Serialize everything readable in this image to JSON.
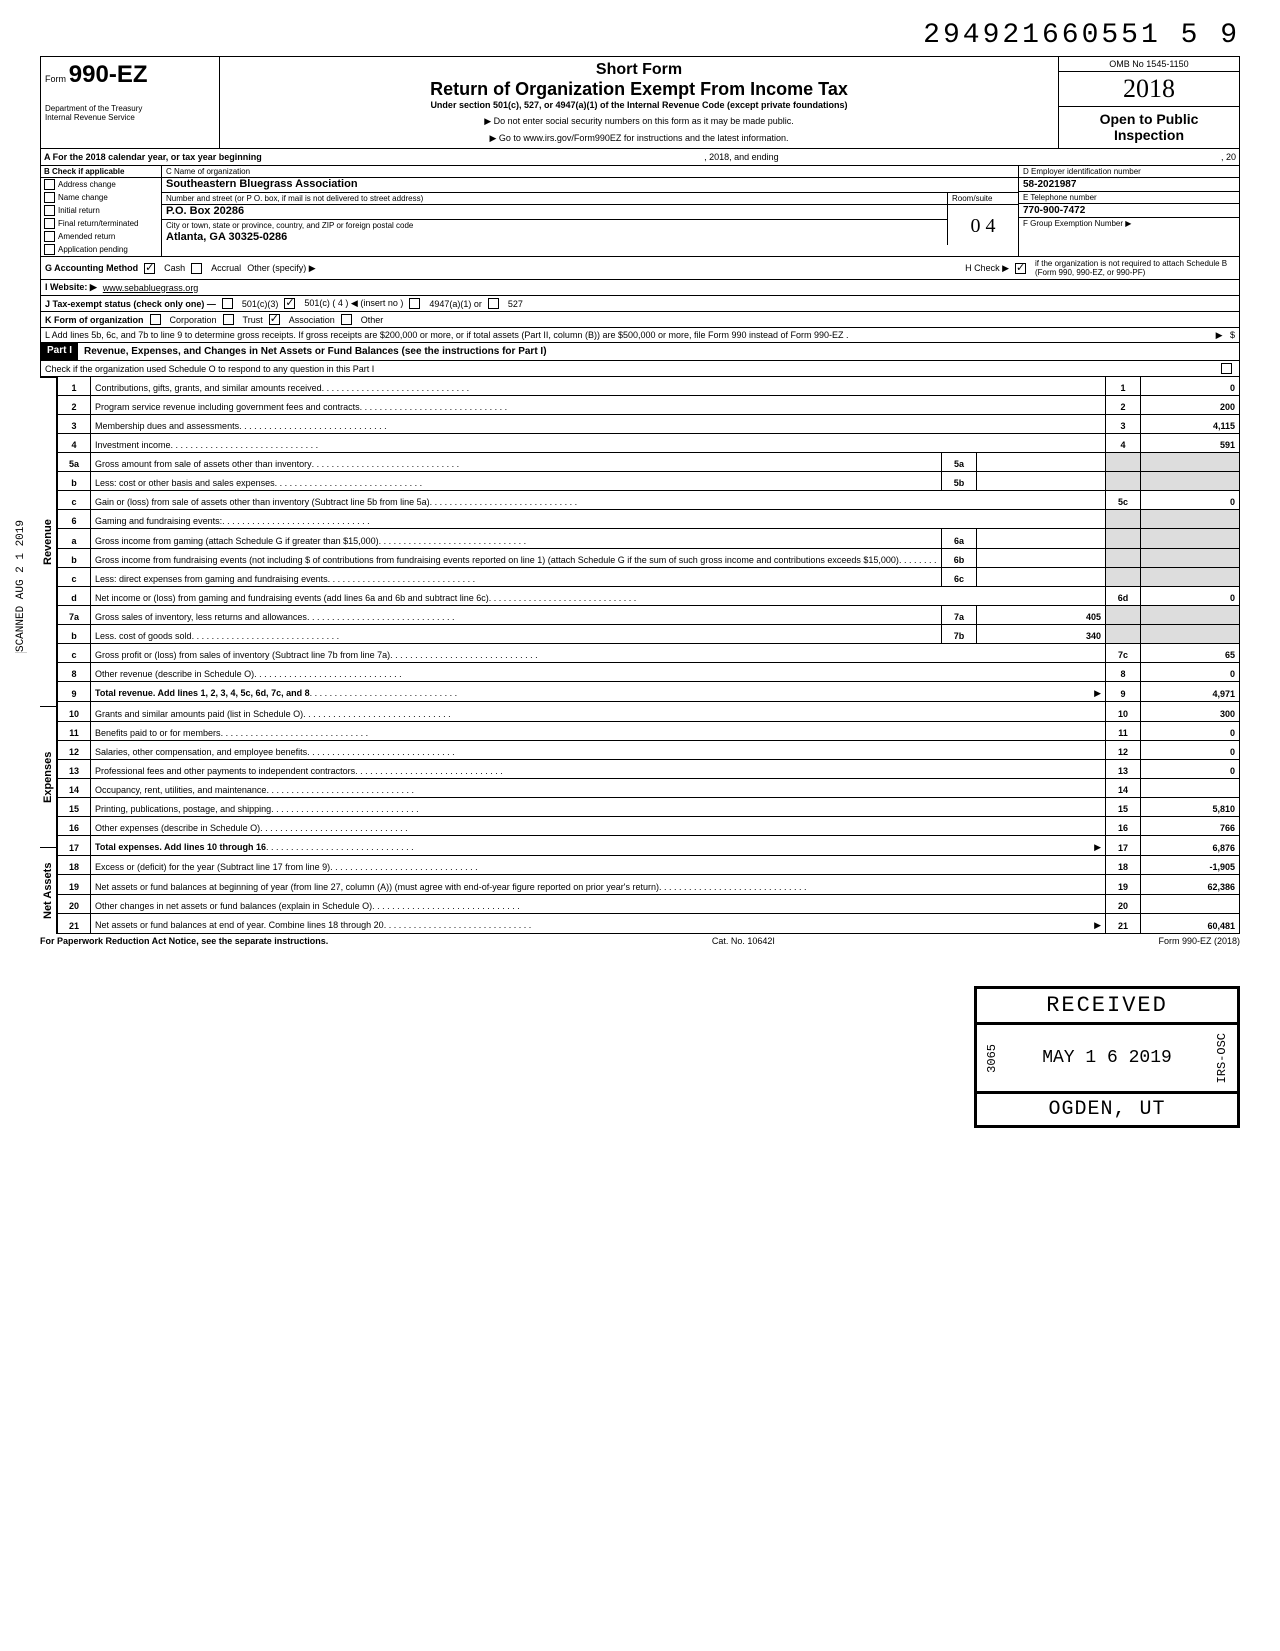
{
  "top_number": "294921660551 5  9",
  "header": {
    "form_prefix": "Form",
    "form_number": "990-EZ",
    "dept": "Department of the Treasury\nInternal Revenue Service",
    "short_form": "Short Form",
    "title": "Return of Organization Exempt From Income Tax",
    "subtitle": "Under section 501(c), 527, or 4947(a)(1) of the Internal Revenue Code (except private foundations)",
    "warn": "▶ Do not enter social security numbers on this form as it may be made public.",
    "goto": "▶ Go to www.irs.gov/Form990EZ for instructions and the latest information.",
    "omb": "OMB No 1545-1150",
    "year": "2018",
    "open": "Open to Public Inspection"
  },
  "row_a": {
    "left": "A  For the 2018 calendar year, or tax year beginning",
    "mid": ", 2018, and ending",
    "right": ", 20"
  },
  "col_b": {
    "title": "B  Check if applicable",
    "items": [
      "Address change",
      "Name change",
      "Initial return",
      "Final return/terminated",
      "Amended return",
      "Application pending"
    ]
  },
  "col_c": {
    "name_label": "C  Name of organization",
    "name": "Southeastern Bluegrass Association",
    "addr_label": "Number and street (or P O. box, if mail is not delivered to street address)",
    "room_label": "Room/suite",
    "addr": "P.O. Box 20286",
    "city_label": "City or town, state or province, country, and ZIP or foreign postal code",
    "city": "Atlanta, GA  30325-0286"
  },
  "col_d": {
    "ein_label": "D Employer identification number",
    "ein": "58-2021987",
    "tel_label": "E  Telephone number",
    "tel": "770-900-7472",
    "grp_label": "F  Group Exemption Number ▶",
    "handwritten": "0 4"
  },
  "row_g": {
    "label": "G  Accounting Method",
    "cash": "Cash",
    "accrual": "Accrual",
    "other": "Other (specify) ▶",
    "h": "H  Check ▶",
    "h_text": "if the organization is not required to attach Schedule B (Form 990, 990-EZ, or 990-PF)"
  },
  "row_i": {
    "label": "I  Website: ▶",
    "val": "www.sebabluegrass.org"
  },
  "row_j": {
    "text": "J  Tax-exempt status (check only one) —",
    "c3": "501(c)(3)",
    "c": "501(c) (   4   ) ◀ (insert no )",
    "a": "4947(a)(1) or",
    "s": "527"
  },
  "row_k": {
    "label": "K  Form of organization",
    "corp": "Corporation",
    "trust": "Trust",
    "assoc": "Association",
    "other": "Other"
  },
  "row_l": "L  Add lines 5b, 6c, and 7b to line 9 to determine gross receipts. If gross receipts are $200,000 or more, or if total assets (Part II, column (B)) are $500,000 or more, file Form 990 instead of Form 990-EZ .",
  "part1": {
    "label": "Part I",
    "title": "Revenue, Expenses, and Changes in Net Assets or Fund Balances (see the instructions for Part I)",
    "check": "Check if the organization used Schedule O to respond to any question in this Part I"
  },
  "side_labels": {
    "revenue": "Revenue",
    "expenses": "Expenses",
    "net": "Net Assets",
    "scanned": "SCANNED AUG 2 1 2019"
  },
  "lines": {
    "l1": {
      "n": "1",
      "d": "Contributions, gifts, grants, and similar amounts received",
      "b": "1",
      "v": "0"
    },
    "l2": {
      "n": "2",
      "d": "Program service revenue including government fees and contracts",
      "b": "2",
      "v": "200"
    },
    "l3": {
      "n": "3",
      "d": "Membership dues and assessments",
      "b": "3",
      "v": "4,115"
    },
    "l4": {
      "n": "4",
      "d": "Investment income",
      "b": "4",
      "v": "591"
    },
    "l5a": {
      "n": "5a",
      "d": "Gross amount from sale of assets other than inventory",
      "mb": "5a",
      "mv": ""
    },
    "l5b": {
      "n": "b",
      "d": "Less: cost or other basis and sales expenses",
      "mb": "5b",
      "mv": ""
    },
    "l5c": {
      "n": "c",
      "d": "Gain or (loss) from sale of assets other than inventory (Subtract line 5b from line 5a)",
      "b": "5c",
      "v": "0"
    },
    "l6": {
      "n": "6",
      "d": "Gaming and fundraising events:"
    },
    "l6a": {
      "n": "a",
      "d": "Gross income from gaming (attach Schedule G if greater than $15,000)",
      "mb": "6a",
      "mv": ""
    },
    "l6b": {
      "n": "b",
      "d": "Gross income from fundraising events (not including  $                       of contributions from fundraising events reported on line 1) (attach Schedule G if the sum of such gross income and contributions exceeds $15,000)",
      "mb": "6b",
      "mv": ""
    },
    "l6c": {
      "n": "c",
      "d": "Less: direct expenses from gaming and fundraising events",
      "mb": "6c",
      "mv": ""
    },
    "l6d": {
      "n": "d",
      "d": "Net income or (loss) from gaming and fundraising events (add lines 6a and 6b and subtract line 6c)",
      "b": "6d",
      "v": "0"
    },
    "l7a": {
      "n": "7a",
      "d": "Gross sales of inventory, less returns and allowances",
      "mb": "7a",
      "mv": "405"
    },
    "l7b": {
      "n": "b",
      "d": "Less. cost of goods sold",
      "mb": "7b",
      "mv": "340"
    },
    "l7c": {
      "n": "c",
      "d": "Gross profit or (loss) from sales of inventory (Subtract line 7b from line 7a)",
      "b": "7c",
      "v": "65"
    },
    "l8": {
      "n": "8",
      "d": "Other revenue (describe in Schedule O)",
      "b": "8",
      "v": "0"
    },
    "l9": {
      "n": "9",
      "d": "Total revenue. Add lines 1, 2, 3, 4, 5c, 6d, 7c, and 8",
      "b": "9",
      "v": "4,971",
      "bold": true,
      "arrow": true
    },
    "l10": {
      "n": "10",
      "d": "Grants and similar amounts paid (list in Schedule O)",
      "b": "10",
      "v": "300"
    },
    "l11": {
      "n": "11",
      "d": "Benefits paid to or for members",
      "b": "11",
      "v": "0"
    },
    "l12": {
      "n": "12",
      "d": "Salaries, other compensation, and employee benefits",
      "b": "12",
      "v": "0"
    },
    "l13": {
      "n": "13",
      "d": "Professional fees and other payments to independent contractors",
      "b": "13",
      "v": "0"
    },
    "l14": {
      "n": "14",
      "d": "Occupancy, rent, utilities, and maintenance",
      "b": "14",
      "v": ""
    },
    "l15": {
      "n": "15",
      "d": "Printing, publications, postage, and shipping",
      "b": "15",
      "v": "5,810"
    },
    "l16": {
      "n": "16",
      "d": "Other expenses (describe in Schedule O)",
      "b": "16",
      "v": "766"
    },
    "l17": {
      "n": "17",
      "d": "Total expenses. Add lines 10 through 16",
      "b": "17",
      "v": "6,876",
      "bold": true,
      "arrow": true
    },
    "l18": {
      "n": "18",
      "d": "Excess or (deficit) for the year (Subtract line 17 from line 9)",
      "b": "18",
      "v": "-1,905"
    },
    "l19": {
      "n": "19",
      "d": "Net assets or fund balances at beginning of year (from line 27, column (A)) (must agree with end-of-year figure reported on prior year's return)",
      "b": "19",
      "v": "62,386"
    },
    "l20": {
      "n": "20",
      "d": "Other changes in net assets or fund balances (explain in Schedule O)",
      "b": "20",
      "v": ""
    },
    "l21": {
      "n": "21",
      "d": "Net assets or fund balances at end of year. Combine lines 18 through 20",
      "b": "21",
      "v": "60,481",
      "arrow": true
    }
  },
  "footer": {
    "left": "For Paperwork Reduction Act Notice, see the separate instructions.",
    "mid": "Cat. No. 10642I",
    "right": "Form 990-EZ (2018)"
  },
  "stamp": {
    "r1": "RECEIVED",
    "side_l": "3065",
    "r2": "MAY 1 6 2019",
    "side_r": "IRS-OSC",
    "r3": "OGDEN, UT"
  }
}
